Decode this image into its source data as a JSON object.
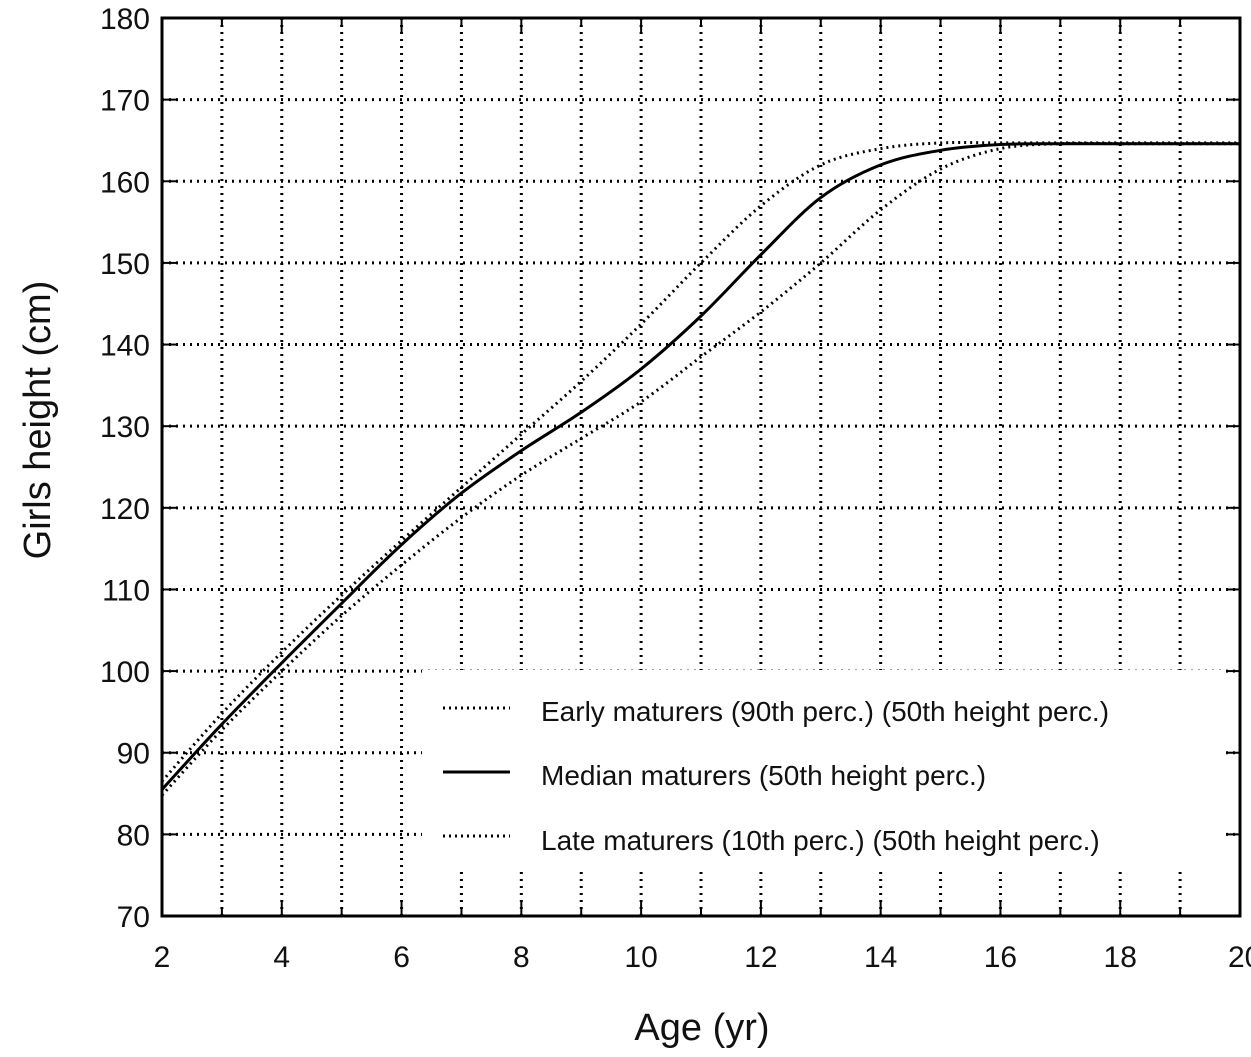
{
  "chart_data": {
    "type": "line",
    "title": "",
    "xlabel": "Age (yr)",
    "ylabel": "Girls height (cm)",
    "xlim": [
      2,
      20
    ],
    "ylim": [
      70,
      180
    ],
    "x_ticks": [
      2,
      4,
      6,
      8,
      10,
      12,
      14,
      16,
      18,
      20
    ],
    "x_tick_labels": [
      "2",
      "4",
      "6",
      "8",
      "10",
      "12",
      "14",
      "16",
      "18",
      "20"
    ],
    "y_ticks": [
      70,
      80,
      90,
      100,
      110,
      120,
      130,
      140,
      150,
      160,
      170,
      180
    ],
    "y_tick_labels": [
      "70",
      "80",
      "90",
      "100",
      "110",
      "120",
      "130",
      "140",
      "150",
      "160",
      "170",
      "180"
    ],
    "grid": true,
    "grid_style": "dotted",
    "legend_position": "bottom-right",
    "series": [
      {
        "name": "Early maturers (90th perc.) (50th height perc.)",
        "line_style": "dotted",
        "color": "#000000",
        "x": [
          2,
          3,
          4,
          5,
          6,
          7,
          8,
          9,
          10,
          11,
          12,
          13,
          14,
          15,
          16,
          17,
          18,
          19,
          20
        ],
        "y": [
          86.5,
          94.8,
          102.3,
          109.3,
          116.0,
          122.5,
          129.0,
          135.5,
          142.5,
          150.0,
          157.0,
          162.0,
          164.0,
          164.7,
          164.7,
          164.7,
          164.7,
          164.7,
          164.7
        ]
      },
      {
        "name": "Median maturers (50th height perc.)",
        "line_style": "solid",
        "color": "#000000",
        "x": [
          2,
          3,
          4,
          5,
          6,
          7,
          8,
          9,
          10,
          11,
          12,
          13,
          14,
          15,
          16,
          17,
          18,
          19,
          20
        ],
        "y": [
          85.5,
          93.5,
          101.0,
          108.3,
          115.5,
          121.8,
          127.0,
          131.7,
          137.0,
          143.5,
          151.0,
          158.0,
          162.0,
          163.8,
          164.5,
          164.6,
          164.6,
          164.6,
          164.6
        ]
      },
      {
        "name": "Late maturers (10th perc.) (50th height perc.)",
        "line_style": "dotted",
        "color": "#000000",
        "x": [
          2,
          3,
          4,
          5,
          6,
          7,
          8,
          9,
          10,
          11,
          12,
          13,
          14,
          15,
          16,
          17,
          18,
          19,
          20
        ],
        "y": [
          84.8,
          92.8,
          100.0,
          106.8,
          113.0,
          118.8,
          124.0,
          128.5,
          133.0,
          138.5,
          144.0,
          150.0,
          156.5,
          161.5,
          164.0,
          164.6,
          164.6,
          164.6,
          164.6
        ]
      }
    ]
  }
}
